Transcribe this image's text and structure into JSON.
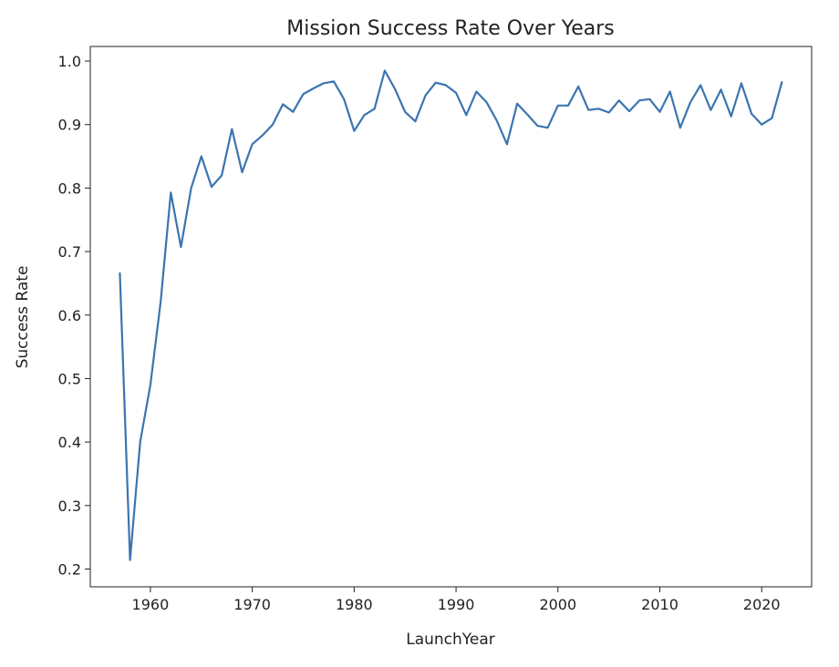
{
  "chart_data": {
    "type": "line",
    "title": "Mission Success Rate Over Years",
    "xlabel": "LaunchYear",
    "ylabel": "Success Rate",
    "xlim": [
      1954.1,
      2024.9
    ],
    "ylim": [
      0.172,
      1.023
    ],
    "xticks": [
      1960,
      1970,
      1980,
      1990,
      2000,
      2010,
      2020
    ],
    "yticks": [
      0.2,
      0.3,
      0.4,
      0.5,
      0.6,
      0.7,
      0.8,
      0.9,
      1.0
    ],
    "grid": false,
    "line_color": "#3b75af",
    "series": [
      {
        "x": [
          1957,
          1958,
          1959,
          1960,
          1961,
          1962,
          1963,
          1964,
          1965,
          1966,
          1967,
          1968,
          1969,
          1970,
          1971,
          1972,
          1973,
          1974,
          1975,
          1976,
          1977,
          1978,
          1979,
          1980,
          1981,
          1982,
          1983,
          1984,
          1985,
          1986,
          1987,
          1988,
          1989,
          1990,
          1991,
          1992,
          1993,
          1994,
          1995,
          1996,
          1997,
          1998,
          1999,
          2000,
          2001,
          2002,
          2003,
          2004,
          2005,
          2006,
          2007,
          2008,
          2009,
          2010,
          2011,
          2012,
          2013,
          2014,
          2015,
          2016,
          2017,
          2018,
          2019,
          2020,
          2021,
          2022
        ],
        "values": [
          0.667,
          0.214,
          0.4,
          0.49,
          0.62,
          0.793,
          0.707,
          0.8,
          0.85,
          0.802,
          0.82,
          0.893,
          0.825,
          0.869,
          0.883,
          0.9,
          0.932,
          0.92,
          0.948,
          0.957,
          0.965,
          0.968,
          0.94,
          0.89,
          0.915,
          0.925,
          0.985,
          0.956,
          0.92,
          0.905,
          0.946,
          0.966,
          0.962,
          0.95,
          0.915,
          0.952,
          0.935,
          0.906,
          0.869,
          0.933,
          0.916,
          0.898,
          0.895,
          0.93,
          0.93,
          0.96,
          0.923,
          0.925,
          0.919,
          0.938,
          0.921,
          0.938,
          0.94,
          0.92,
          0.952,
          0.895,
          0.935,
          0.962,
          0.923,
          0.955,
          0.913,
          0.965,
          0.917,
          0.9,
          0.91,
          0.968
        ]
      }
    ]
  }
}
